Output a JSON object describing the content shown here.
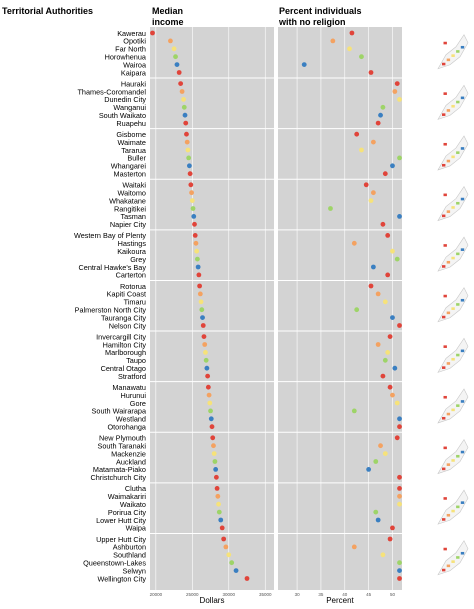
{
  "headers": {
    "authorities": "Territorial Authorities",
    "income_line1": "Median",
    "income_line2": "income",
    "religion_line1": "Percent individuals",
    "religion_line2": "with no religion"
  },
  "axis": {
    "income_label": "Dollars",
    "religion_label": "Percent"
  },
  "colors": {
    "panel_bg": "#d3d3d3",
    "grid_line": "#ffffff",
    "series": [
      "#e0443a",
      "#f4a261",
      "#f6e27a",
      "#9ed468",
      "#3a7fc1"
    ]
  },
  "chart_data": {
    "type": "scatter",
    "income_axis": {
      "label": "Dollars",
      "ticks": [
        20000,
        25000,
        30000,
        35000
      ],
      "range": [
        19200,
        36200
      ]
    },
    "religion_axis": {
      "label": "Percent",
      "ticks": [
        30,
        35,
        40,
        45,
        50
      ],
      "range": [
        26,
        52
      ]
    },
    "groups": [
      {
        "authorities": [
          {
            "name": "Kawerau",
            "income": 19500,
            "no_religion": 41.5
          },
          {
            "name": "Opotiki",
            "income": 22000,
            "no_religion": 37.5
          },
          {
            "name": "Far North",
            "income": 22500,
            "no_religion": 41.0
          },
          {
            "name": "Horowhenua",
            "income": 22700,
            "no_religion": 43.5
          },
          {
            "name": "Wairoa",
            "income": 22900,
            "no_religion": 31.5
          },
          {
            "name": "Kaipara",
            "income": 23200,
            "no_religion": 45.5
          }
        ]
      },
      {
        "authorities": [
          {
            "name": "Hauraki",
            "income": 23400,
            "no_religion": 51.0
          },
          {
            "name": "Thames-Coromandel",
            "income": 23600,
            "no_religion": 50.5
          },
          {
            "name": "Dunedin City",
            "income": 23800,
            "no_religion": 52.0
          },
          {
            "name": "Wanganui",
            "income": 23900,
            "no_religion": 48.0
          },
          {
            "name": "South Waikato",
            "income": 24000,
            "no_religion": 47.5
          },
          {
            "name": "Ruapehu",
            "income": 24100,
            "no_religion": 47.0
          }
        ]
      },
      {
        "authorities": [
          {
            "name": "Gisborne",
            "income": 24200,
            "no_religion": 42.5
          },
          {
            "name": "Waimate",
            "income": 24300,
            "no_religion": 46.0
          },
          {
            "name": "Tararua",
            "income": 24400,
            "no_religion": 43.5
          },
          {
            "name": "Buller",
            "income": 24500,
            "no_religion": 58.0
          },
          {
            "name": "Whangarei",
            "income": 24600,
            "no_religion": 50.0
          },
          {
            "name": "Masterton",
            "income": 24700,
            "no_religion": 48.5
          }
        ]
      },
      {
        "authorities": [
          {
            "name": "Waitaki",
            "income": 24800,
            "no_religion": 44.5
          },
          {
            "name": "Waitomo",
            "income": 24900,
            "no_religion": 46.0
          },
          {
            "name": "Whakatane",
            "income": 25000,
            "no_religion": 45.5
          },
          {
            "name": "Rangitikei",
            "income": 25100,
            "no_religion": 37.0
          },
          {
            "name": "Tasman",
            "income": 25200,
            "no_religion": 58.0
          },
          {
            "name": "Napier City",
            "income": 25300,
            "no_religion": 48.0
          }
        ]
      },
      {
        "authorities": [
          {
            "name": "Western Bay of Plenty",
            "income": 25400,
            "no_religion": 49.0
          },
          {
            "name": "Hastings",
            "income": 25500,
            "no_religion": 42.0
          },
          {
            "name": "Kaikoura",
            "income": 25600,
            "no_religion": 50.0
          },
          {
            "name": "Grey",
            "income": 25700,
            "no_religion": 51.0
          },
          {
            "name": "Central Hawke's Bay",
            "income": 25800,
            "no_religion": 46.0
          },
          {
            "name": "Carterton",
            "income": 25900,
            "no_religion": 49.0
          }
        ]
      },
      {
        "authorities": [
          {
            "name": "Rotorua",
            "income": 26000,
            "no_religion": 45.5
          },
          {
            "name": "Kapiti Coast",
            "income": 26100,
            "no_religion": 47.0
          },
          {
            "name": "Timaru",
            "income": 26200,
            "no_religion": 48.5
          },
          {
            "name": "Palmerston North City",
            "income": 26300,
            "no_religion": 42.5
          },
          {
            "name": "Tauranga City",
            "income": 26400,
            "no_religion": 50.0
          },
          {
            "name": "Nelson City",
            "income": 26500,
            "no_religion": 58.0
          }
        ]
      },
      {
        "authorities": [
          {
            "name": "Invercargill City",
            "income": 26600,
            "no_religion": 49.5
          },
          {
            "name": "Hamilton City",
            "income": 26700,
            "no_religion": 47.0
          },
          {
            "name": "Marlborough",
            "income": 26800,
            "no_religion": 49.0
          },
          {
            "name": "Taupo",
            "income": 26900,
            "no_religion": 48.5
          },
          {
            "name": "Central Otago",
            "income": 27000,
            "no_religion": 50.5
          },
          {
            "name": "Stratford",
            "income": 27100,
            "no_religion": 48.0
          }
        ]
      },
      {
        "authorities": [
          {
            "name": "Manawatu",
            "income": 27200,
            "no_religion": 49.5
          },
          {
            "name": "Hurunui",
            "income": 27300,
            "no_religion": 50.0
          },
          {
            "name": "Gore",
            "income": 27400,
            "no_religion": 51.0
          },
          {
            "name": "South Wairarapa",
            "income": 27500,
            "no_religion": 42.0
          },
          {
            "name": "Westland",
            "income": 27600,
            "no_religion": 51.5
          },
          {
            "name": "Otorohanga",
            "income": 27700,
            "no_religion": 52.0
          }
        ]
      },
      {
        "authorities": [
          {
            "name": "New Plymouth",
            "income": 27800,
            "no_religion": 51.0
          },
          {
            "name": "South Taranaki",
            "income": 27900,
            "no_religion": 47.5
          },
          {
            "name": "Mackenzie",
            "income": 28000,
            "no_religion": 48.5
          },
          {
            "name": "Auckland",
            "income": 28100,
            "no_religion": 46.5
          },
          {
            "name": "Matamata-Piako",
            "income": 28200,
            "no_religion": 45.0
          },
          {
            "name": "Christchurch City",
            "income": 28300,
            "no_religion": 52.0
          }
        ]
      },
      {
        "authorities": [
          {
            "name": "Clutha",
            "income": 28400,
            "no_religion": 53.0
          },
          {
            "name": "Waimakariri",
            "income": 28500,
            "no_religion": 52.5
          },
          {
            "name": "Waikato",
            "income": 28600,
            "no_religion": 54.0
          },
          {
            "name": "Porirua City",
            "income": 28700,
            "no_religion": 46.5
          },
          {
            "name": "Lower Hutt City",
            "income": 28900,
            "no_religion": 47.0
          },
          {
            "name": "Waipa",
            "income": 29100,
            "no_religion": 50.0
          }
        ]
      },
      {
        "authorities": [
          {
            "name": "Upper Hutt City",
            "income": 29300,
            "no_religion": 49.5
          },
          {
            "name": "Ashburton",
            "income": 29600,
            "no_religion": 42.0
          },
          {
            "name": "Southland",
            "income": 30000,
            "no_religion": 48.0
          },
          {
            "name": "Queenstown-Lakes",
            "income": 30400,
            "no_religion": 56.5
          },
          {
            "name": "Selwyn",
            "income": 31000,
            "no_religion": 54.5
          },
          {
            "name": "Wellington City",
            "income": 32500,
            "no_religion": 54.0
          }
        ]
      }
    ]
  }
}
